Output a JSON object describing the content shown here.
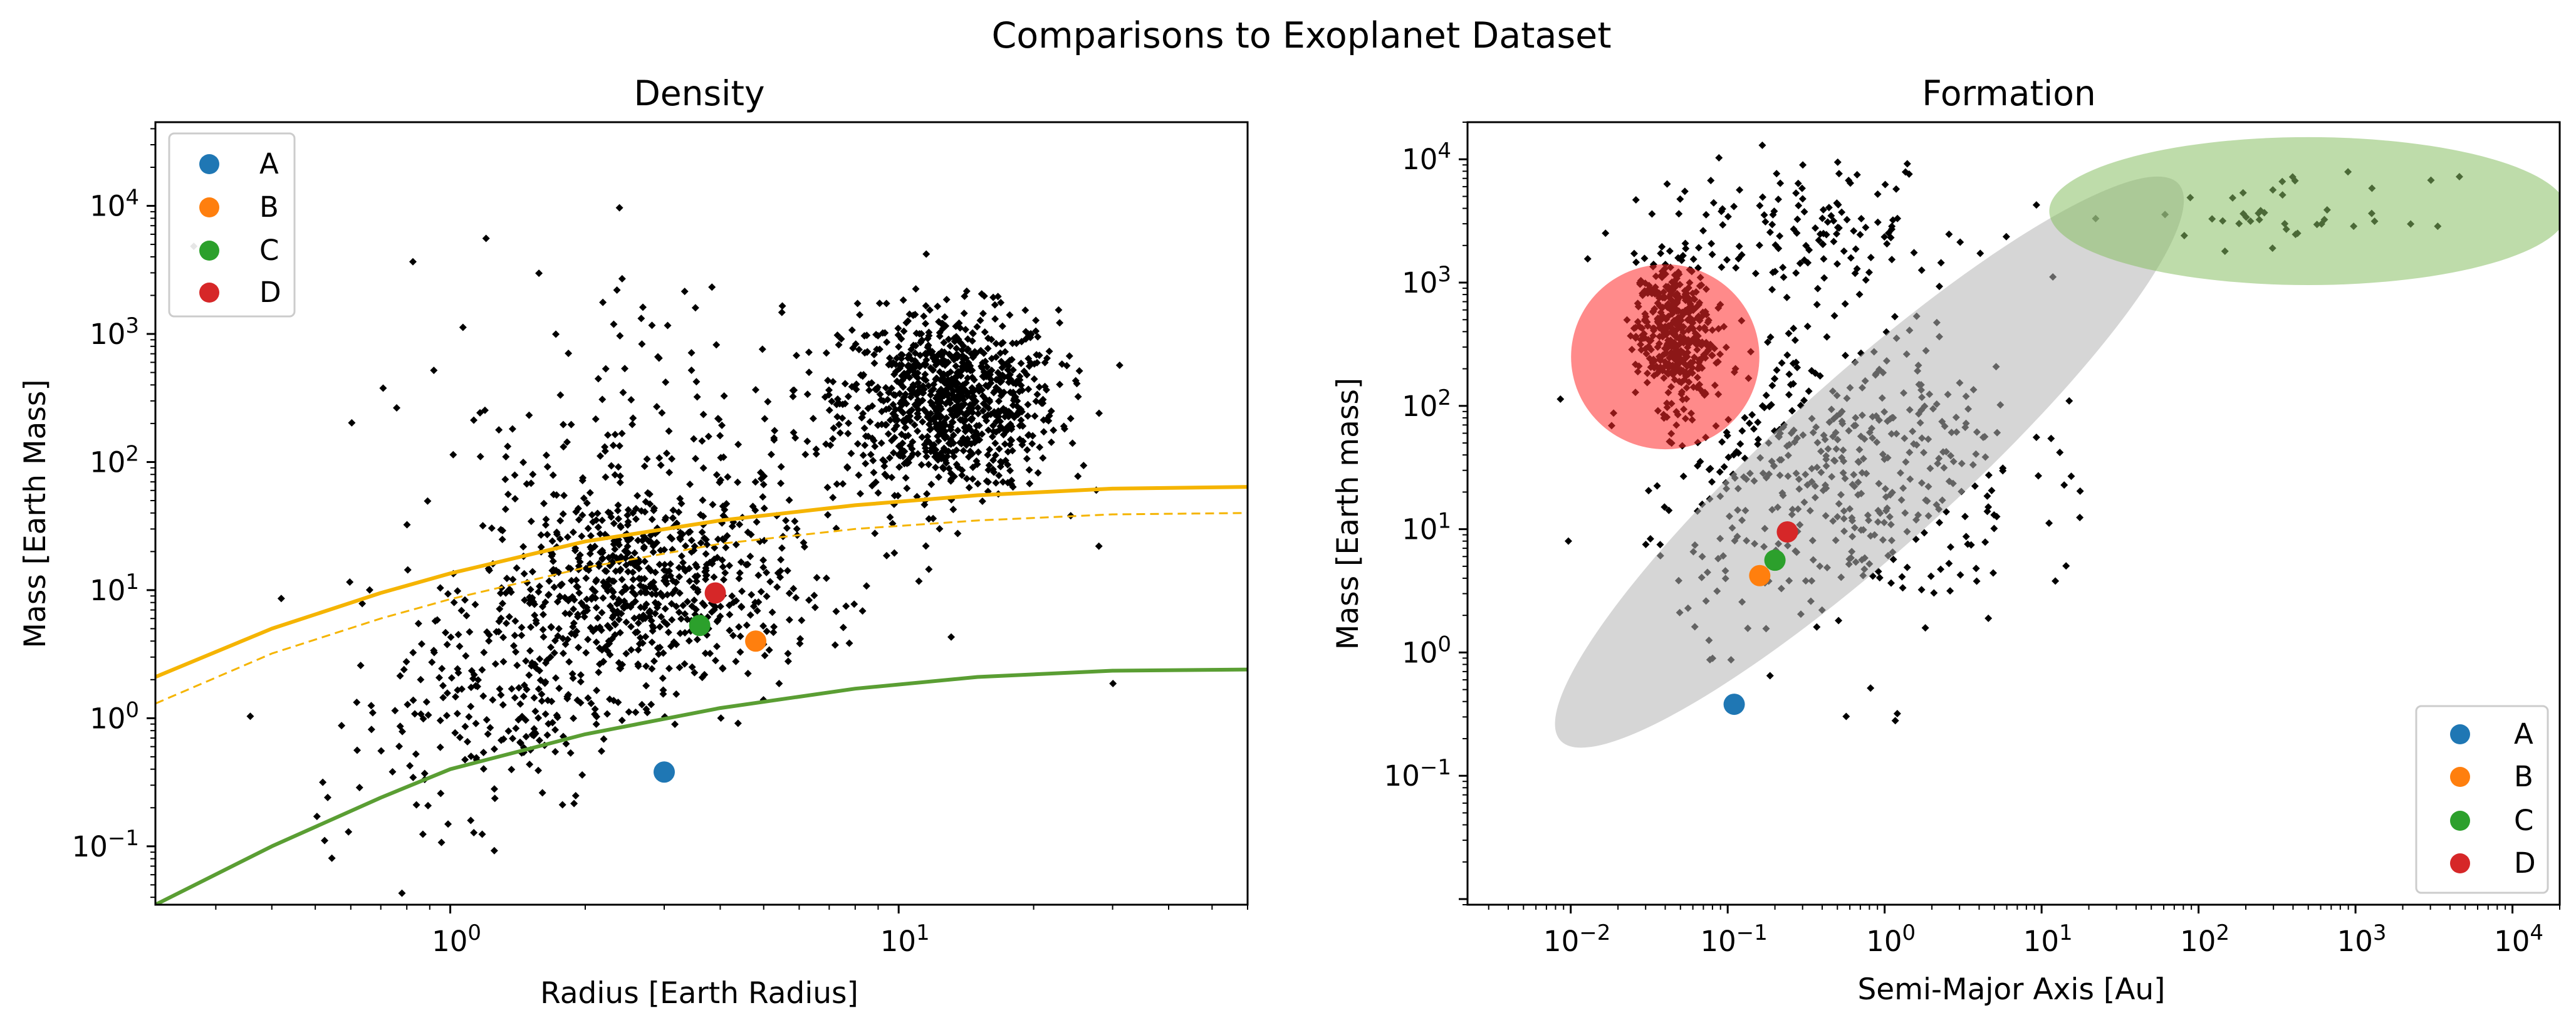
{
  "figure": {
    "title": "Comparisons to Exoplanet Dataset"
  },
  "colors": {
    "A": "#1f77b4",
    "B": "#ff7f0e",
    "C": "#2ca02c",
    "D": "#d62728",
    "dataset": "#000000",
    "curve_upper": "#f5b400",
    "curve_lower": "#5a9e33",
    "region_red": "#ff2a2a",
    "region_grey": "#b4b4b4",
    "region_green": "#88c065"
  },
  "chart_data": [
    {
      "type": "scatter",
      "title": "Density",
      "xlabel": "Radius [Earth Radius]",
      "ylabel": "Mass [Earth Mass]",
      "xscale": "log",
      "yscale": "log",
      "xlim": [
        0.22,
        60
      ],
      "ylim": [
        0.035,
        45000
      ],
      "xticks": [
        {
          "value": 1,
          "label": "10^0"
        },
        {
          "value": 10,
          "label": "10^1"
        }
      ],
      "yticks": [
        {
          "value": 0.1,
          "label": "10^-1"
        },
        {
          "value": 1,
          "label": "10^0"
        },
        {
          "value": 10,
          "label": "10^1"
        },
        {
          "value": 100,
          "label": "10^2"
        },
        {
          "value": 1000,
          "label": "10^3"
        },
        {
          "value": 10000,
          "label": "10^4"
        }
      ],
      "legend": {
        "position": "upper-left",
        "entries": [
          "A",
          "B",
          "C",
          "D"
        ]
      },
      "series": [
        {
          "name": "A",
          "x": [
            3.0
          ],
          "y": [
            0.38
          ]
        },
        {
          "name": "B",
          "x": [
            4.8
          ],
          "y": [
            4.0
          ]
        },
        {
          "name": "C",
          "x": [
            3.6
          ],
          "y": [
            5.3
          ]
        },
        {
          "name": "D",
          "x": [
            3.9
          ],
          "y": [
            9.5
          ]
        }
      ],
      "dataset_clusters": [
        {
          "x_center": 13,
          "y_center": 300,
          "x_spread": 0.12,
          "y_spread": 0.35,
          "count": 900
        },
        {
          "x_center": 2.6,
          "y_center": 10,
          "x_spread": 0.17,
          "y_spread": 0.4,
          "count": 650
        },
        {
          "x_center": 1.3,
          "y_center": 1.5,
          "x_spread": 0.12,
          "y_spread": 0.45,
          "count": 180
        },
        {
          "x_center": 3.5,
          "y_center": 100,
          "x_spread": 0.33,
          "y_spread": 0.8,
          "count": 250
        },
        {
          "x_center": 0.7,
          "y_center": 0.25,
          "x_spread": 0.12,
          "y_spread": 0.4,
          "count": 25
        }
      ],
      "curves": [
        {
          "color_key": "curve_upper",
          "style": "solid",
          "x": [
            0.22,
            0.4,
            0.7,
            1.0,
            2.0,
            4.0,
            8.0,
            15.0,
            30.0,
            60.0
          ],
          "y": [
            2.1,
            5.0,
            9.5,
            13.5,
            24.0,
            35.0,
            46.0,
            55.0,
            62.0,
            64.0
          ]
        },
        {
          "color_key": "curve_upper",
          "style": "dashed",
          "x": [
            0.22,
            0.4,
            0.7,
            1.0,
            2.0,
            4.0,
            8.0,
            15.0,
            30.0,
            60.0
          ],
          "y": [
            1.3,
            3.2,
            6.0,
            8.5,
            15.0,
            23.0,
            30.0,
            35.0,
            39.0,
            40.0
          ]
        },
        {
          "color_key": "curve_lower",
          "style": "solid",
          "x": [
            0.22,
            0.4,
            0.7,
            1.0,
            2.0,
            4.0,
            8.0,
            15.0,
            30.0,
            60.0
          ],
          "y": [
            0.035,
            0.1,
            0.24,
            0.4,
            0.75,
            1.2,
            1.7,
            2.1,
            2.35,
            2.4
          ]
        }
      ]
    },
    {
      "type": "scatter",
      "title": "Formation",
      "xlabel": "Semi-Major Axis [Au]",
      "ylabel": "Mass [Earth mass]",
      "xscale": "log",
      "yscale": "log",
      "xlim": [
        0.0022,
        20000
      ],
      "ylim": [
        0.009,
        20000
      ],
      "xticks": [
        {
          "value": 0.01,
          "label": "10^-2"
        },
        {
          "value": 0.1,
          "label": "10^-1"
        },
        {
          "value": 1,
          "label": "10^0"
        },
        {
          "value": 10,
          "label": "10^1"
        },
        {
          "value": 100,
          "label": "10^2"
        },
        {
          "value": 1000,
          "label": "10^3"
        },
        {
          "value": 10000,
          "label": "10^4"
        }
      ],
      "yticks": [
        {
          "value": 0.1,
          "label": "10^-1"
        },
        {
          "value": 1,
          "label": "10^0"
        },
        {
          "value": 10,
          "label": "10^1"
        },
        {
          "value": 100,
          "label": "10^2"
        },
        {
          "value": 1000,
          "label": "10^3"
        },
        {
          "value": 10000,
          "label": "10^4"
        }
      ],
      "legend": {
        "position": "lower-right",
        "entries": [
          "A",
          "B",
          "C",
          "D"
        ]
      },
      "series": [
        {
          "name": "A",
          "x": [
            0.11
          ],
          "y": [
            0.38
          ]
        },
        {
          "name": "B",
          "x": [
            0.16
          ],
          "y": [
            4.2
          ]
        },
        {
          "name": "C",
          "x": [
            0.2
          ],
          "y": [
            5.6
          ]
        },
        {
          "name": "D",
          "x": [
            0.24
          ],
          "y": [
            9.5
          ]
        }
      ],
      "dataset_clusters": [
        {
          "x_center": 0.045,
          "y_center": 400,
          "x_spread": 0.12,
          "y_spread": 0.3,
          "count": 420
        },
        {
          "x_center": 0.5,
          "y_center": 30,
          "x_spread": 0.6,
          "y_spread": 0.65,
          "count": 500
        },
        {
          "x_center": 0.3,
          "y_center": 3000,
          "x_spread": 0.5,
          "y_spread": 0.25,
          "count": 130
        },
        {
          "x_center": 400,
          "y_center": 3500,
          "x_spread": 0.45,
          "y_spread": 0.15,
          "count": 40
        }
      ],
      "regions": [
        {
          "color_key": "region_red",
          "opacity": 0.55,
          "x_center": 0.04,
          "y_center": 250,
          "x_halfwidth_dex": 0.6,
          "y_halfwidth_dex": 0.75,
          "angle_deg": 0
        },
        {
          "color_key": "region_grey",
          "opacity": 0.55,
          "x_center": 0.8,
          "y_center": 35,
          "x_halfwidth_dex": 2.65,
          "y_halfwidth_dex": 0.7,
          "angle_deg": 42
        },
        {
          "color_key": "region_green",
          "opacity": 0.55,
          "x_center": 500,
          "y_center": 3800,
          "x_halfwidth_dex": 1.65,
          "y_halfwidth_dex": 0.6,
          "angle_deg": 0
        }
      ]
    }
  ]
}
